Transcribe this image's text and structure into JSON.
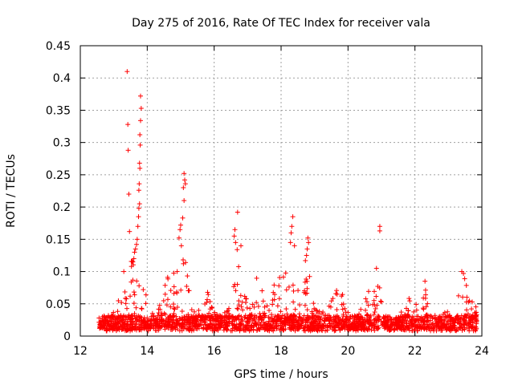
{
  "chart_data": {
    "type": "scatter",
    "title": "Day 275 of 2016, Rate Of TEC Index for receiver vala",
    "xlabel": "GPS time / hours",
    "ylabel": "ROTI / TECUs",
    "xlim": [
      12,
      24
    ],
    "ylim": [
      0,
      0.45
    ],
    "xticks": [
      12,
      14,
      16,
      18,
      20,
      22,
      24
    ],
    "yticks": [
      0,
      0.05,
      0.1,
      0.15,
      0.2,
      0.25,
      0.3,
      0.35,
      0.4,
      0.45
    ],
    "ytick_labels": [
      "0",
      "0.05",
      "0.1",
      "0.15",
      "0.2",
      "0.25",
      "0.3",
      "0.35",
      "0.4",
      "0.45"
    ],
    "grid": true,
    "marker": "+",
    "color": "#ff0000",
    "series": [
      {
        "name": "ROTI",
        "points": [
          [
            13.4,
            0.41
          ],
          [
            13.42,
            0.328
          ],
          [
            13.43,
            0.288
          ],
          [
            13.45,
            0.22
          ],
          [
            13.47,
            0.162
          ],
          [
            13.8,
            0.372
          ],
          [
            13.82,
            0.353
          ],
          [
            13.8,
            0.334
          ],
          [
            13.78,
            0.312
          ],
          [
            13.79,
            0.296
          ],
          [
            13.77,
            0.268
          ],
          [
            13.78,
            0.26
          ],
          [
            13.76,
            0.236
          ],
          [
            13.75,
            0.226
          ],
          [
            13.77,
            0.205
          ],
          [
            13.75,
            0.198
          ],
          [
            13.74,
            0.185
          ],
          [
            13.72,
            0.17
          ],
          [
            13.7,
            0.15
          ],
          [
            13.68,
            0.142
          ],
          [
            13.65,
            0.135
          ],
          [
            13.62,
            0.13
          ],
          [
            13.6,
            0.12
          ],
          [
            13.57,
            0.115
          ],
          [
            13.3,
            0.1
          ],
          [
            15.1,
            0.252
          ],
          [
            15.12,
            0.242
          ],
          [
            15.14,
            0.236
          ],
          [
            15.08,
            0.23
          ],
          [
            15.1,
            0.21
          ],
          [
            15.06,
            0.183
          ],
          [
            15.0,
            0.172
          ],
          [
            14.98,
            0.165
          ],
          [
            14.95,
            0.152
          ],
          [
            15.02,
            0.14
          ],
          [
            16.7,
            0.192
          ],
          [
            16.62,
            0.165
          ],
          [
            16.6,
            0.155
          ],
          [
            16.64,
            0.145
          ],
          [
            16.8,
            0.14
          ],
          [
            18.35,
            0.185
          ],
          [
            18.32,
            0.17
          ],
          [
            18.3,
            0.16
          ],
          [
            18.28,
            0.145
          ],
          [
            18.4,
            0.14
          ],
          [
            18.8,
            0.152
          ],
          [
            18.82,
            0.145
          ],
          [
            18.78,
            0.135
          ],
          [
            18.76,
            0.125
          ],
          [
            20.95,
            0.17
          ],
          [
            20.95,
            0.163
          ],
          [
            20.85,
            0.105
          ],
          [
            23.4,
            0.1
          ],
          [
            23.45,
            0.097
          ],
          [
            22.3,
            0.085
          ]
        ]
      }
    ],
    "envelope_hours": [
      12.5,
      12.8,
      13.0,
      13.2,
      13.35,
      13.5,
      13.65,
      13.8,
      14.0,
      14.2,
      14.4,
      14.55,
      14.7,
      14.85,
      15.0,
      15.15,
      15.3,
      15.5,
      15.7,
      15.85,
      16.0,
      16.2,
      16.4,
      16.55,
      16.7,
      16.85,
      17.0,
      17.15,
      17.3,
      17.5,
      17.7,
      17.85,
      18.0,
      18.15,
      18.3,
      18.45,
      18.6,
      18.75,
      18.9,
      19.05,
      19.2,
      19.4,
      19.6,
      19.75,
      19.9,
      20.05,
      20.2,
      20.4,
      20.6,
      20.75,
      20.9,
      21.05,
      21.2,
      21.4,
      21.6,
      21.8,
      21.95,
      22.1,
      22.3,
      22.5,
      22.7,
      22.85,
      23.0,
      23.15,
      23.3,
      23.45,
      23.6,
      23.75,
      23.85
    ],
    "envelope_roti": [
      0.03,
      0.03,
      0.04,
      0.065,
      0.07,
      0.12,
      0.14,
      0.13,
      0.05,
      0.04,
      0.055,
      0.1,
      0.08,
      0.12,
      0.16,
      0.12,
      0.05,
      0.035,
      0.09,
      0.06,
      0.04,
      0.04,
      0.05,
      0.07,
      0.14,
      0.09,
      0.05,
      0.07,
      0.1,
      0.06,
      0.045,
      0.12,
      0.1,
      0.11,
      0.13,
      0.1,
      0.06,
      0.13,
      0.09,
      0.05,
      0.04,
      0.045,
      0.08,
      0.1,
      0.06,
      0.04,
      0.04,
      0.045,
      0.07,
      0.065,
      0.1,
      0.04,
      0.035,
      0.03,
      0.04,
      0.06,
      0.06,
      0.05,
      0.085,
      0.04,
      0.03,
      0.035,
      0.04,
      0.07,
      0.08,
      0.1,
      0.07,
      0.06,
      0.04
    ]
  }
}
